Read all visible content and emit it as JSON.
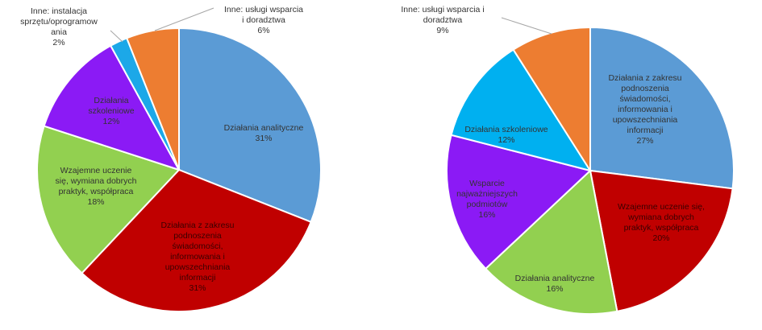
{
  "chart_data": [
    {
      "type": "pie",
      "title": "",
      "legend": "none",
      "slices": [
        {
          "label": "Działania analityczne",
          "value": 31,
          "pct_label": "31%",
          "color": "#5B9BD5"
        },
        {
          "label": "Działania z zakresu podnoszenia świadomości, informowania i upowszechniania informacji",
          "value": 31,
          "pct_label": "31%",
          "color": "#C00000"
        },
        {
          "label": "Wzajemne uczenie się, wymiana dobrych praktyk, współpraca",
          "value": 18,
          "pct_label": "18%",
          "color": "#92D050"
        },
        {
          "label": "Działania szkoleniowe",
          "value": 12,
          "pct_label": "12%",
          "color": "#8B1AF5"
        },
        {
          "label": "Inne: instalacja sprzętu/oprogramowania",
          "value": 2,
          "pct_label": "2%",
          "color": "#1CA8E8"
        },
        {
          "label": "Inne: usługi wsparcia i doradztwa",
          "value": 6,
          "pct_label": "6%",
          "color": "#ED7D31"
        }
      ]
    },
    {
      "type": "pie",
      "title": "",
      "legend": "none",
      "slices": [
        {
          "label": "Działania z zakresu podnoszenia świadomości, informowania i upowszechniania informacji",
          "value": 27,
          "pct_label": "27%",
          "color": "#5B9BD5"
        },
        {
          "label": "Wzajemne uczenie się, wymiana dobrych praktyk, współpraca",
          "value": 20,
          "pct_label": "20%",
          "color": "#C00000"
        },
        {
          "label": "Działania analityczne",
          "value": 16,
          "pct_label": "16%",
          "color": "#92D050"
        },
        {
          "label": "Wsparcie najważniejszych podmiotów",
          "value": 16,
          "pct_label": "16%",
          "color": "#8B1AF5"
        },
        {
          "label": "Działania szkoleniowe",
          "value": 12,
          "pct_label": "12%",
          "color": "#00B0F0"
        },
        {
          "label": "Inne: usługi wsparcia i doradztwa",
          "value": 9,
          "pct_label": "9%",
          "color": "#ED7D31"
        }
      ]
    }
  ]
}
